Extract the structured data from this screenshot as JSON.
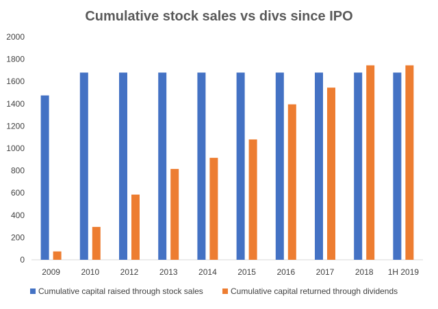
{
  "chart_data": {
    "type": "bar",
    "title": "Cumulative stock sales vs divs since IPO",
    "categories": [
      "2009",
      "2010",
      "2012",
      "2013",
      "2014",
      "2015",
      "2016",
      "2017",
      "2018",
      "1H 2019"
    ],
    "series": [
      {
        "name": "Cumulative capital raised through stock sales",
        "color": "#4472C4",
        "values": [
          1475,
          1680,
          1680,
          1680,
          1680,
          1680,
          1680,
          1680,
          1680,
          1680
        ]
      },
      {
        "name": "Cumulative capital returned through dividends",
        "color": "#ED7D31",
        "values": [
          75,
          295,
          585,
          815,
          915,
          1080,
          1395,
          1545,
          1745,
          1745
        ]
      }
    ],
    "ylim": [
      0,
      2000
    ],
    "yticks": [
      0,
      200,
      400,
      600,
      800,
      1000,
      1200,
      1400,
      1600,
      1800,
      2000
    ],
    "grid": false,
    "legend_position": "bottom"
  }
}
